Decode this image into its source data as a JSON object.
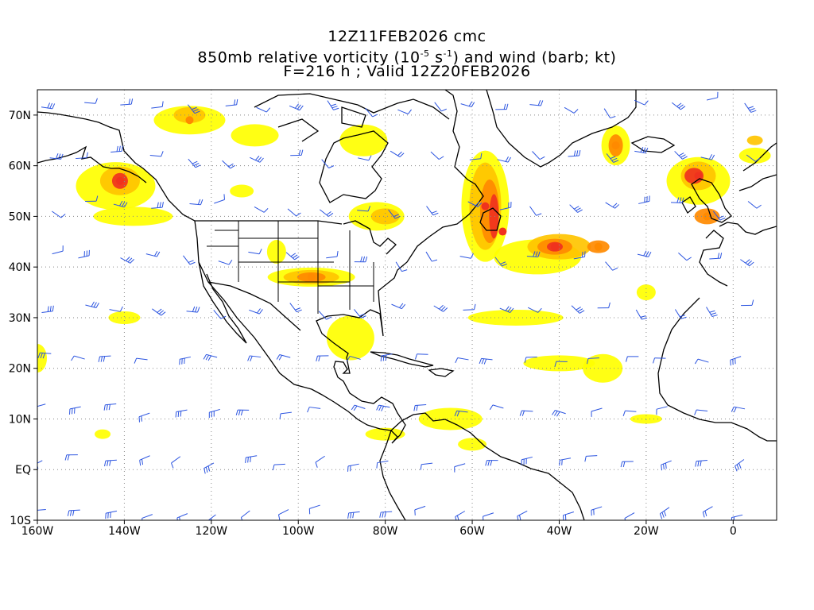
{
  "header": {
    "line1": "12Z11FEB2026 cmc",
    "line2_prefix": "850mb relative vorticity (10",
    "line2_exp1": "-5",
    "line2_mid": " s",
    "line2_exp2": "-1",
    "line2_suffix": ") and wind (barb; kt)",
    "line3": "F=216 h ; Valid 12Z20FEB2026"
  },
  "map": {
    "projection": "lat-lon",
    "lon_range": [
      -160,
      10
    ],
    "lat_range": [
      -10,
      75
    ],
    "x_ticks": [
      {
        "lon": -160,
        "label": "160W"
      },
      {
        "lon": -140,
        "label": "140W"
      },
      {
        "lon": -120,
        "label": "120W"
      },
      {
        "lon": -100,
        "label": "100W"
      },
      {
        "lon": -80,
        "label": "80W"
      },
      {
        "lon": -60,
        "label": "60W"
      },
      {
        "lon": -40,
        "label": "40W"
      },
      {
        "lon": -20,
        "label": "20W"
      },
      {
        "lon": 0,
        "label": "0"
      }
    ],
    "y_ticks": [
      {
        "lat": 70,
        "label": "70N"
      },
      {
        "lat": 60,
        "label": "60N"
      },
      {
        "lat": 50,
        "label": "50N"
      },
      {
        "lat": 40,
        "label": "40N"
      },
      {
        "lat": 30,
        "label": "30N"
      },
      {
        "lat": 20,
        "label": "20N"
      },
      {
        "lat": 10,
        "label": "10N"
      },
      {
        "lat": 0,
        "label": "EQ"
      },
      {
        "lat": -10,
        "label": "10S"
      }
    ],
    "grid": "dotted",
    "colors": {
      "low": "#ffff00",
      "mid": "#ffc400",
      "high": "#ff8a00",
      "peak": "#f0321e",
      "barb": "#2b54e0",
      "coast": "#000000",
      "grid": "#888888"
    },
    "vorticity_maxima": [
      {
        "lon": -57,
        "lat": 52,
        "level": "peak"
      },
      {
        "lon": -53,
        "lat": 47,
        "level": "peak"
      },
      {
        "lon": -41,
        "lat": 44,
        "level": "peak"
      },
      {
        "lon": -31,
        "lat": 44,
        "level": "high"
      },
      {
        "lon": -97,
        "lat": 38,
        "level": "high"
      },
      {
        "lon": -141,
        "lat": 57,
        "level": "peak"
      },
      {
        "lon": -8,
        "lat": 58,
        "level": "peak"
      },
      {
        "lon": -6,
        "lat": 50,
        "level": "high"
      },
      {
        "lon": -27,
        "lat": 64,
        "level": "high"
      },
      {
        "lon": -125,
        "lat": 69,
        "level": "high"
      }
    ]
  }
}
